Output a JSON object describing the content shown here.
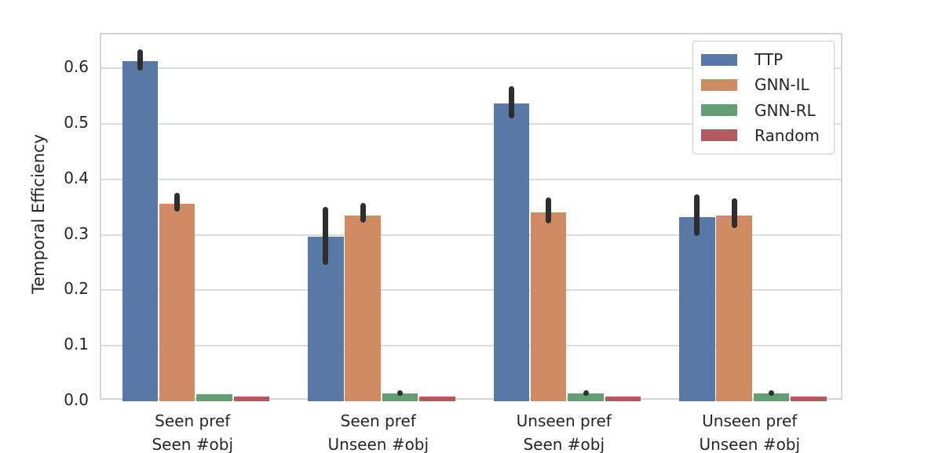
{
  "chart_data": {
    "type": "bar",
    "title": "",
    "xlabel": "",
    "ylabel": "Temporal Efficiency",
    "ylim": [
      0.0,
      0.66
    ],
    "yticks": [
      0.0,
      0.1,
      0.2,
      0.3,
      0.4,
      0.5,
      0.6
    ],
    "grid": "horizontal",
    "legend_position": "upper right",
    "categories": [
      {
        "line1": "Seen pref",
        "line2": "Seen #obj"
      },
      {
        "line1": "Seen pref",
        "line2": "Unseen #obj"
      },
      {
        "line1": "Unseen pref",
        "line2": "Seen #obj"
      },
      {
        "line1": "Unseen pref",
        "line2": "Unseen #obj"
      }
    ],
    "series": [
      {
        "name": "TTP",
        "color": "#5878a6",
        "values": [
          0.613,
          0.296,
          0.536,
          0.332
        ],
        "error_intervals": [
          [
            0.596,
            0.634
          ],
          [
            0.245,
            0.35
          ],
          [
            0.51,
            0.567
          ],
          [
            0.298,
            0.373
          ]
        ]
      },
      {
        "name": "GNN-IL",
        "color": "#d08b63",
        "values": [
          0.356,
          0.335,
          0.34,
          0.335
        ],
        "error_intervals": [
          [
            0.342,
            0.376
          ],
          [
            0.322,
            0.357
          ],
          [
            0.32,
            0.367
          ],
          [
            0.312,
            0.366
          ]
        ]
      },
      {
        "name": "GNN-RL",
        "color": "#629e71",
        "values": [
          0.013,
          0.014,
          0.014,
          0.014
        ],
        "error_intervals": [
          null,
          [
            0.01,
            0.02
          ],
          [
            0.01,
            0.02
          ],
          [
            0.01,
            0.02
          ]
        ]
      },
      {
        "name": "Random",
        "color": "#b45a5e",
        "values": [
          0.008,
          0.008,
          0.008,
          0.008
        ],
        "error_intervals": [
          null,
          null,
          null,
          null
        ]
      }
    ],
    "style": {
      "text_color": "#262626",
      "grid_color": "#dcdcdc",
      "spine_color": "#d3d3d3",
      "error_bar_color": "#2e2e2e",
      "background": "#ffffff"
    }
  }
}
